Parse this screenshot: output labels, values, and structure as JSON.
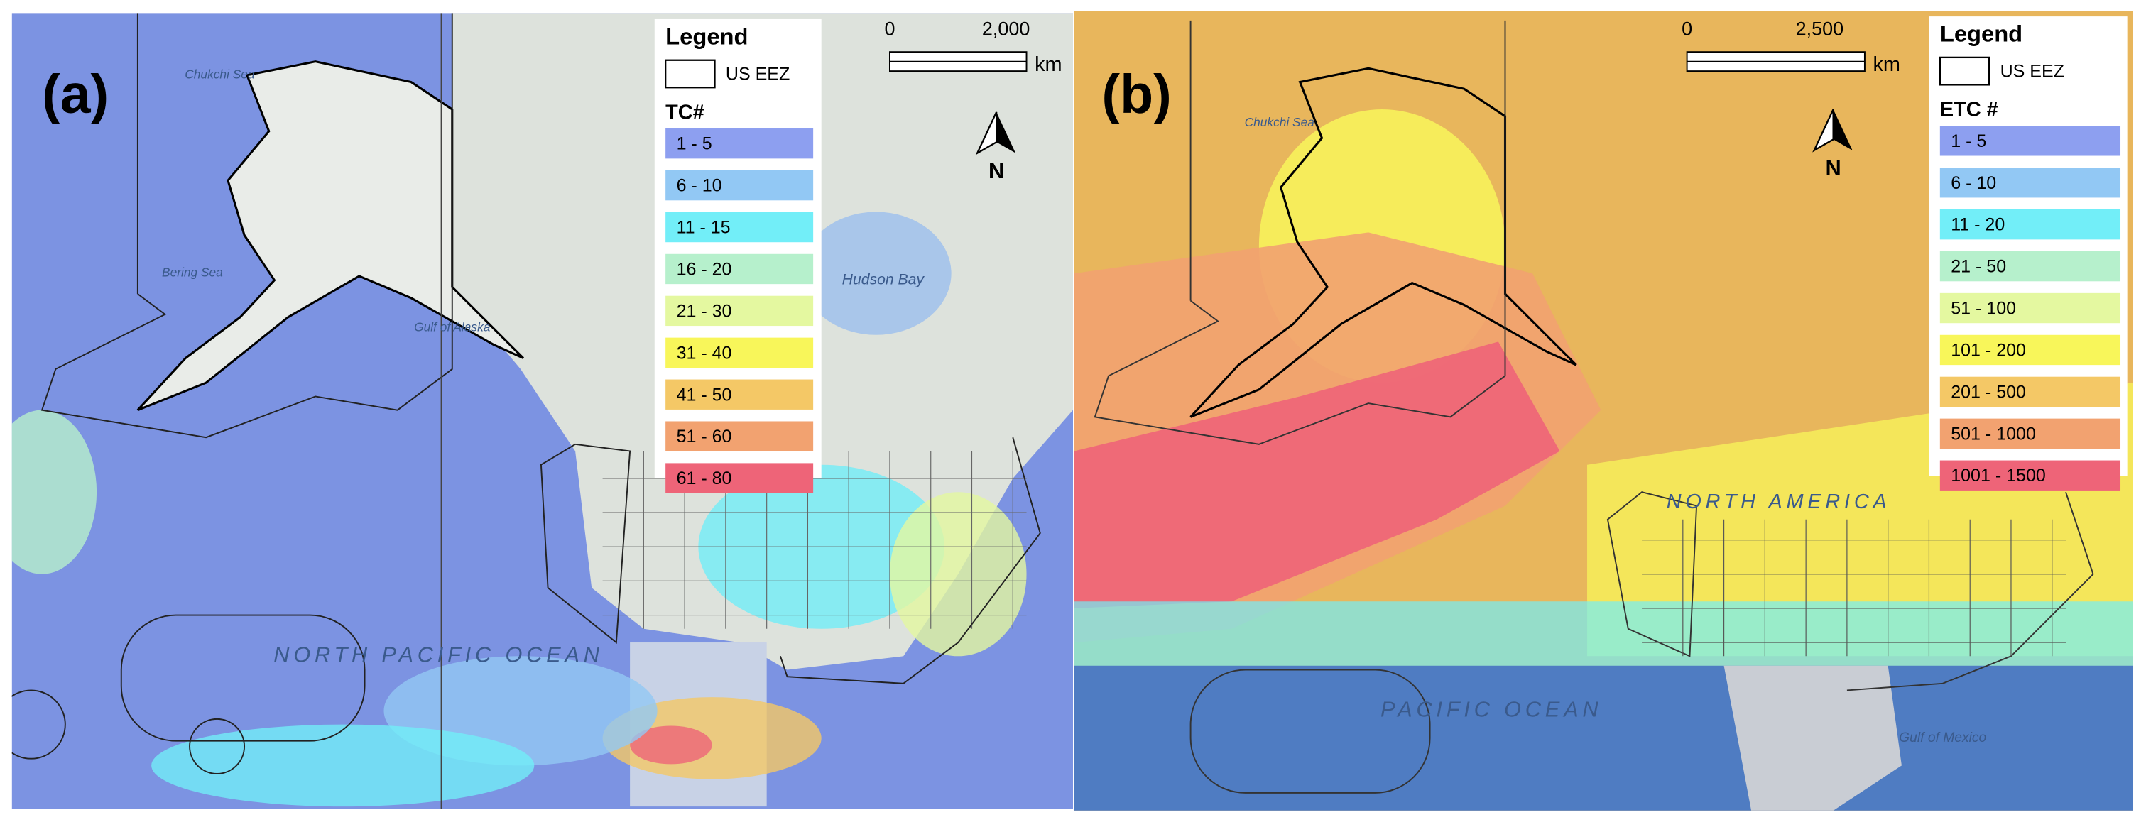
{
  "panels": [
    {
      "label": "(a)",
      "legend": {
        "title": "Legend",
        "eez_label": "US EEZ",
        "class_title": "TC#",
        "classes": [
          {
            "label": "1 - 5",
            "color": "#8d9ff0"
          },
          {
            "label": "6 - 10",
            "color": "#92c8f4"
          },
          {
            "label": "11 - 15",
            "color": "#72eef8"
          },
          {
            "label": "16 - 20",
            "color": "#b6f0cc"
          },
          {
            "label": "21 - 30",
            "color": "#e4f8a0"
          },
          {
            "label": "31 - 40",
            "color": "#f8f65a"
          },
          {
            "label": "41 - 50",
            "color": "#f4c866"
          },
          {
            "label": "51 - 60",
            "color": "#f2a270"
          },
          {
            "label": "61 - 80",
            "color": "#ee6478"
          }
        ]
      },
      "scale_bar": {
        "start": "0",
        "end": "2,000",
        "unit": "km"
      },
      "north": "N",
      "map_labels": [
        "Chukchi Sea",
        "Bering Sea",
        "Gulf of Alaska",
        "Hudson Bay",
        "NORTH PACIFIC OCEAN"
      ]
    },
    {
      "label": "(b)",
      "legend": {
        "title": "Legend",
        "eez_label": "US EEZ",
        "class_title": "ETC #",
        "classes": [
          {
            "label": "1 - 5",
            "color": "#8d9ff0"
          },
          {
            "label": "6 - 10",
            "color": "#92c8f4"
          },
          {
            "label": "11 - 20",
            "color": "#72eef8"
          },
          {
            "label": "21 - 50",
            "color": "#b6f0cc"
          },
          {
            "label": "51 - 100",
            "color": "#e4f8a0"
          },
          {
            "label": "101 - 200",
            "color": "#f8f65a"
          },
          {
            "label": "201 - 500",
            "color": "#f4c866"
          },
          {
            "label": "501 - 1000",
            "color": "#f2a270"
          },
          {
            "label": "1001 - 1500",
            "color": "#ee6478"
          }
        ]
      },
      "scale_bar": {
        "start": "0",
        "end": "2,500",
        "unit": "km"
      },
      "north": "N",
      "map_labels": [
        "Chukchi Sea",
        "NORTH AMERICA",
        "PACIFIC OCEAN",
        "Gulf of Mexico"
      ]
    }
  ]
}
